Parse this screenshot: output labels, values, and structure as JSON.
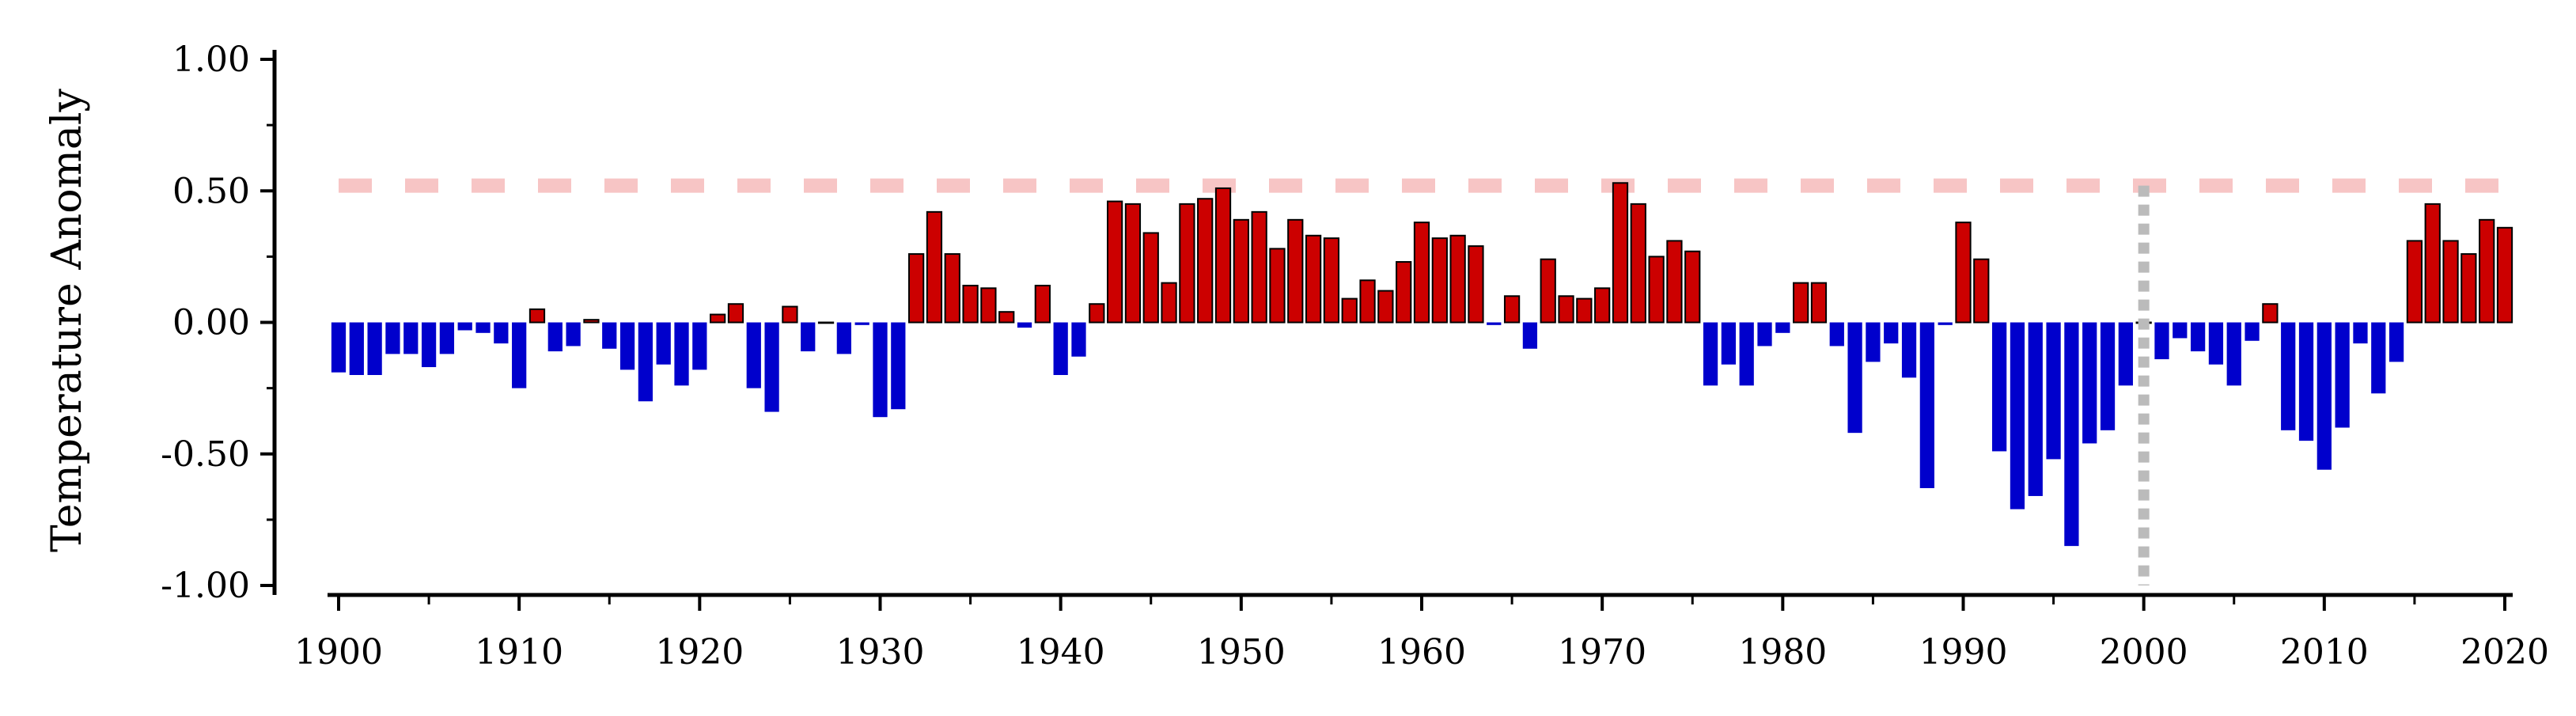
{
  "chart_data": {
    "type": "bar",
    "title": "",
    "xlabel": "",
    "ylabel": "Temperature Anomaly",
    "xlim": [
      1900,
      2020
    ],
    "ylim": [
      -1.0,
      1.0
    ],
    "x_ticks": [
      "1900",
      "1910",
      "1920",
      "1930",
      "1940",
      "1950",
      "1960",
      "1970",
      "1980",
      "1990",
      "2000",
      "2010",
      "2020"
    ],
    "y_ticks": [
      "1.00",
      "0.50",
      "0.00",
      "-0.50",
      "-1.00"
    ],
    "grid": false,
    "legend": "none",
    "colors": {
      "positive": "#cc0000",
      "negative": "#0000cc",
      "reference_line": "#f7c5c5",
      "marker_line": "#bbbbbb"
    },
    "reference_line": {
      "y": 0.52,
      "style": "dashed"
    },
    "marker_line": {
      "x": 2000,
      "style": "dotted"
    },
    "years": [
      1900,
      1901,
      1902,
      1903,
      1904,
      1905,
      1906,
      1907,
      1908,
      1909,
      1910,
      1911,
      1912,
      1913,
      1914,
      1915,
      1916,
      1917,
      1918,
      1919,
      1920,
      1921,
      1922,
      1923,
      1924,
      1925,
      1926,
      1927,
      1928,
      1929,
      1930,
      1931,
      1932,
      1933,
      1934,
      1935,
      1936,
      1937,
      1938,
      1939,
      1940,
      1941,
      1942,
      1943,
      1944,
      1945,
      1946,
      1947,
      1948,
      1949,
      1950,
      1951,
      1952,
      1953,
      1954,
      1955,
      1956,
      1957,
      1958,
      1959,
      1960,
      1961,
      1962,
      1963,
      1964,
      1965,
      1966,
      1967,
      1968,
      1969,
      1970,
      1971,
      1972,
      1973,
      1974,
      1975,
      1976,
      1977,
      1978,
      1979,
      1980,
      1981,
      1982,
      1983,
      1984,
      1985,
      1986,
      1987,
      1988,
      1989,
      1990,
      1991,
      1992,
      1993,
      1994,
      1995,
      1996,
      1997,
      1998,
      1999,
      2000,
      2001,
      2002,
      2003,
      2004,
      2005,
      2006,
      2007,
      2008,
      2009,
      2010,
      2011,
      2012,
      2013,
      2014,
      2015,
      2016,
      2017,
      2018,
      2019,
      2020
    ],
    "values": [
      -0.19,
      -0.2,
      -0.2,
      -0.12,
      -0.12,
      -0.17,
      -0.12,
      -0.03,
      -0.04,
      -0.08,
      -0.25,
      0.05,
      -0.11,
      -0.09,
      0.01,
      -0.1,
      -0.18,
      -0.3,
      -0.16,
      -0.24,
      -0.18,
      0.03,
      0.07,
      -0.25,
      -0.34,
      0.06,
      -0.11,
      0.0,
      -0.12,
      -0.01,
      -0.36,
      -0.33,
      0.26,
      0.42,
      0.26,
      0.14,
      0.13,
      0.04,
      -0.02,
      0.14,
      -0.2,
      -0.13,
      0.07,
      0.46,
      0.45,
      0.34,
      0.15,
      0.45,
      0.47,
      0.51,
      0.39,
      0.42,
      0.28,
      0.39,
      0.33,
      0.32,
      0.09,
      0.16,
      0.12,
      0.23,
      0.38,
      0.32,
      0.33,
      0.29,
      -0.01,
      0.1,
      -0.1,
      0.24,
      0.1,
      0.09,
      0.13,
      0.53,
      0.45,
      0.25,
      0.31,
      0.27,
      -0.24,
      -0.16,
      -0.24,
      -0.09,
      -0.04,
      0.15,
      0.15,
      -0.09,
      -0.42,
      -0.15,
      -0.08,
      -0.21,
      -0.63,
      -0.01,
      0.38,
      0.24,
      -0.49,
      -0.71,
      -0.66,
      -0.52,
      -0.85,
      -0.46,
      -0.41,
      -0.24,
      0.0,
      -0.14,
      -0.06,
      -0.11,
      -0.16,
      -0.24,
      -0.07,
      0.07,
      -0.41,
      -0.45,
      -0.56,
      -0.4,
      -0.08,
      -0.27,
      -0.15,
      0.31,
      0.45,
      0.31,
      0.26,
      0.39,
      0.36
    ]
  }
}
